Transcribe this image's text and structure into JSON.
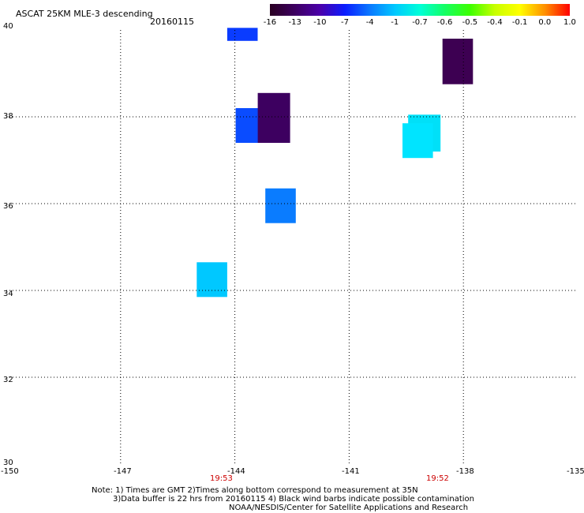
{
  "header": {
    "title": "ASCAT 25KM MLE-3 descending",
    "date": "20160115"
  },
  "colorbar": {
    "labels": [
      "-16",
      "-13",
      "-10",
      "-7",
      "-4",
      "-1",
      "-0.7",
      "-0.6",
      "-0.5",
      "-0.4",
      "-0.1",
      "0.0",
      "1.0"
    ],
    "colors": [
      "#2a0022",
      "#3d0060",
      "#4b00aa",
      "#0a1cff",
      "#0a78ff",
      "#00c8ff",
      "#00ffd8",
      "#14ff64",
      "#3cff00",
      "#c8ff00",
      "#ffff00",
      "#ff9000",
      "#ff0000"
    ]
  },
  "map": {
    "lon_range": [
      -150,
      -135
    ],
    "lat_range": [
      30,
      40
    ],
    "x_ticks": [
      "-150",
      "-147",
      "-144",
      "-141",
      "-138",
      "-135"
    ],
    "y_ticks": [
      "40",
      "38",
      "36",
      "34",
      "32",
      "30"
    ],
    "pass_times": [
      {
        "label": "19:53",
        "lon": -144
      },
      {
        "label": "19:52",
        "lon": -138
      }
    ],
    "cells": [
      {
        "lon1": -144.2,
        "lon2": -143.4,
        "lat1": 39.75,
        "lat2": 40.05,
        "color": "#0a3cff",
        "value_band": "-10 to -7"
      },
      {
        "lon1": -138.55,
        "lon2": -137.75,
        "lat1": 38.75,
        "lat2": 39.8,
        "color": "#3d0052",
        "value_band": "-16 to -13"
      },
      {
        "lon1": -143.98,
        "lon2": -143.35,
        "lat1": 37.4,
        "lat2": 38.2,
        "color": "#0a4cff",
        "value_band": "-10 to -7"
      },
      {
        "lon1": -143.4,
        "lon2": -142.55,
        "lat1": 37.4,
        "lat2": 38.55,
        "color": "#3d0060",
        "value_band": "-16 to -13"
      },
      {
        "lon1": -139.45,
        "lon2": -138.6,
        "lat1": 37.2,
        "lat2": 38.05,
        "color": "#00e0f8",
        "value_band": "-1 to -0.7"
      },
      {
        "lon1": -139.6,
        "lon2": -138.8,
        "lat1": 37.05,
        "lat2": 37.85,
        "color": "#00e4ff",
        "value_band": "-1 to -0.7"
      },
      {
        "lon1": -143.2,
        "lon2": -142.4,
        "lat1": 35.55,
        "lat2": 36.35,
        "color": "#0a7cff",
        "value_band": "-7 to -4"
      },
      {
        "lon1": -145.0,
        "lon2": -144.2,
        "lat1": 33.85,
        "lat2": 34.65,
        "color": "#00c8ff",
        "value_band": "-4 to -1"
      }
    ]
  },
  "notes": [
    "Note: 1) Times are GMT 2)Times along bottom correspond to measurement at 35N",
    "3)Data buffer is 22 hrs from 20160115 4) Black wind barbs indicate possible contamination",
    "NOAA/NESDIS/Center for Satellite Applications and Research"
  ]
}
